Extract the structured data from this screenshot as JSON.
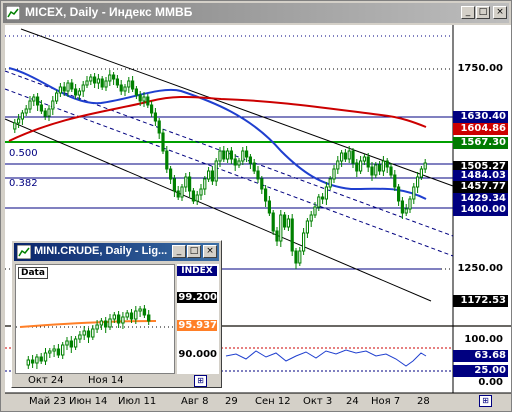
{
  "window": {
    "title": "MICEX, Daily - Индекс ММВБ",
    "minimize": "_",
    "maximize": "□",
    "close": "×"
  },
  "colors": {
    "candle": "#008000",
    "ma_blue": "#1f3fcf",
    "ma_red": "#cc0000",
    "channel": "#000000",
    "fib": "#000080",
    "level_green": "#00a000",
    "label_navy": "#000080",
    "label_red": "#cc0000",
    "label_black": "#000000",
    "label_green": "#007a00",
    "label_orange": "#ff7f27",
    "label_pink": "#c0c0ff"
  },
  "price_scale": [
    "1750.00",
    "1250.00"
  ],
  "price_labels": [
    {
      "text": "1630.40",
      "style": "navy"
    },
    {
      "text": "1604.86",
      "style": "red"
    },
    {
      "text": "1567.30",
      "style": "green"
    },
    {
      "text": "1505.27",
      "style": "black"
    },
    {
      "text": "1484.03",
      "style": "navy"
    },
    {
      "text": "1457.77",
      "style": "black"
    },
    {
      "text": "1429.34",
      "style": "navy"
    },
    {
      "text": "1400.00",
      "style": "navy"
    },
    {
      "text": "1172.53",
      "style": "black"
    }
  ],
  "fib_labels": [
    "0.500",
    "0.382"
  ],
  "osc_scale": [
    "100.00",
    "63.68",
    "25.00",
    "0.00"
  ],
  "dates": [
    "Май 23",
    "Июн 14",
    "Июл 11",
    "Авг 8",
    "29",
    "Сен 12",
    "Окт 3",
    "24",
    "Ноя 7",
    "28"
  ],
  "mini": {
    "title": "MINI.CRUDE, Daily - Lig...",
    "data_tag": "Data",
    "index_tag": "INDEX",
    "scale": [
      "99.200",
      "95.937",
      "90.000"
    ],
    "dates": [
      "Окт 24",
      "Ноя 14"
    ]
  },
  "scroll_icon": "⊞"
}
